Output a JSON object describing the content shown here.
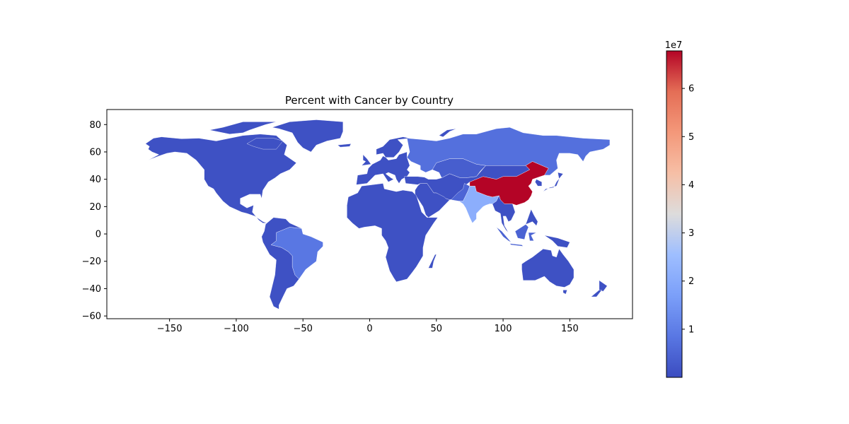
{
  "chart_data": {
    "type": "choropleth",
    "title": "Percent with Cancer by Country",
    "xlim": [
      -197,
      197
    ],
    "ylim": [
      -62,
      91
    ],
    "x_ticks": [
      -150,
      -100,
      -50,
      0,
      50,
      100,
      150
    ],
    "x_tick_labels": [
      "−150",
      "−100",
      "−50",
      "0",
      "50",
      "100",
      "150"
    ],
    "y_ticks": [
      -60,
      -40,
      -20,
      0,
      20,
      40,
      60,
      80
    ],
    "y_tick_labels": [
      "−60",
      "−40",
      "−20",
      "0",
      "20",
      "40",
      "60",
      "80"
    ],
    "colormap": "coolwarm",
    "colorbar": {
      "min": 0,
      "max": 67800000,
      "ticks": [
        1,
        2,
        3,
        4,
        5,
        6
      ],
      "tick_labels": [
        "1",
        "2",
        "3",
        "4",
        "5",
        "6"
      ],
      "multiplier_label": "1e7"
    },
    "regions": [
      {
        "name": "China",
        "value": 67800000
      },
      {
        "name": "India",
        "value": 21000000
      },
      {
        "name": "Brazil",
        "value": 8500000
      },
      {
        "name": "Russia",
        "value": 7000000
      },
      {
        "name": "Pakistan",
        "value": 5000000
      },
      {
        "name": "Indonesia",
        "value": 4500000
      },
      {
        "name": "Kazakhstan",
        "value": 3500000
      },
      {
        "name": "Other countries",
        "value": 900000
      }
    ]
  },
  "colors": {
    "low": "#3b4cc0",
    "high": "#b40426"
  }
}
